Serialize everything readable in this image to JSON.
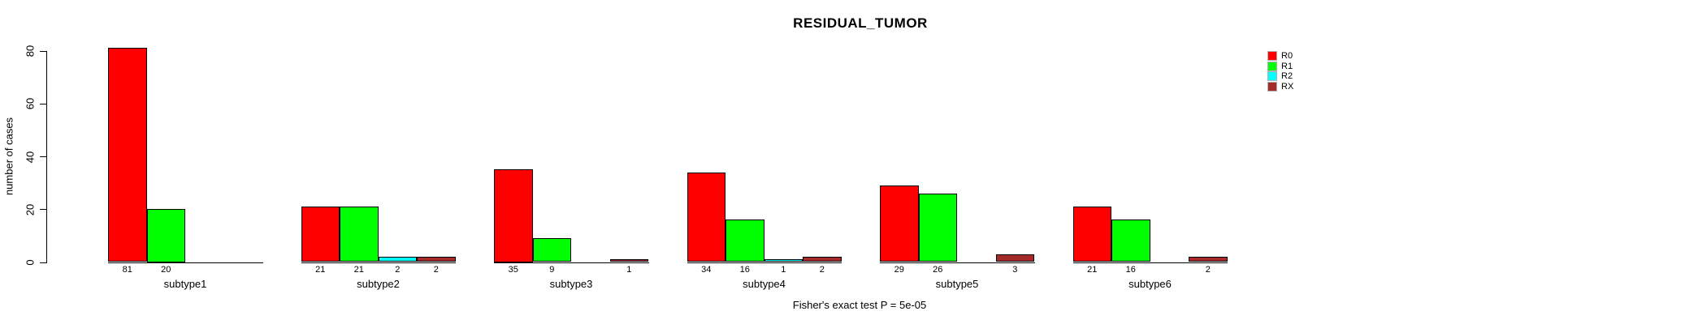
{
  "title": "RESIDUAL_TUMOR",
  "footnote": "Fisher's exact test P = 5e-05",
  "chart_data": {
    "type": "bar",
    "title": "RESIDUAL_TUMOR",
    "xlabel": "",
    "ylabel": "number of cases",
    "ylim": [
      0,
      80
    ],
    "yticks": [
      0,
      20,
      40,
      60,
      80
    ],
    "grid": false,
    "legend_position": "top-right",
    "bar_value_labels_shown_when_nonzero": true,
    "categories": [
      "subtype1",
      "subtype2",
      "subtype3",
      "subtype4",
      "subtype5",
      "subtype6"
    ],
    "series": [
      {
        "name": "R0",
        "color": "#FF0000",
        "values": [
          81,
          21,
          35,
          34,
          29,
          21
        ]
      },
      {
        "name": "R1",
        "color": "#00FF00",
        "values": [
          20,
          21,
          9,
          16,
          26,
          16
        ]
      },
      {
        "name": "R2",
        "color": "#00FFFF",
        "values": [
          0,
          2,
          0,
          1,
          0,
          0
        ]
      },
      {
        "name": "RX",
        "color": "#A52A2A",
        "values": [
          0,
          2,
          1,
          2,
          3,
          2
        ]
      }
    ]
  },
  "colors": {
    "background": "#FFFFFF",
    "axis": "#000000",
    "text": "#000000"
  }
}
